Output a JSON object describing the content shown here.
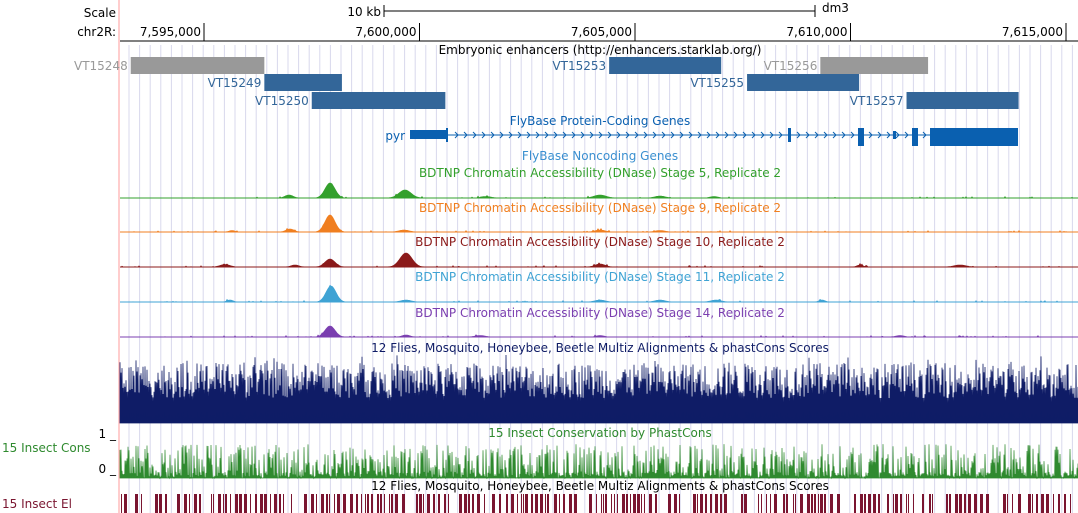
{
  "header": {
    "scale_label": "Scale",
    "chrom_label": "chr2R:",
    "scale_bar_label": "10 kb",
    "assembly": "dm3",
    "ruler_ticks": [
      {
        "pos": 7595000,
        "label": "7,595,000"
      },
      {
        "pos": 7600000,
        "label": "7,600,000"
      },
      {
        "pos": 7605000,
        "label": "7,605,000"
      },
      {
        "pos": 7610000,
        "label": "7,610,000"
      },
      {
        "pos": 7615000,
        "label": "7,615,000"
      }
    ]
  },
  "colors": {
    "enhancer": "#336699",
    "enhancer_gray": "#999999",
    "gene": "#0a60b0",
    "noncoding": "#3a8fd0",
    "stage5": "#33a02c",
    "stage9": "#f07f20",
    "stage10": "#8b1a1a",
    "stage11": "#3fa3d4",
    "stage14": "#7b3fb0",
    "multiz": "#0f1c66",
    "cons": "#2f8a2f",
    "elements": "#7a1530",
    "gridline": "#d8d8ec",
    "guide_red": "#ff9090"
  },
  "tracks": {
    "enhancers": {
      "title": "Embryonic enhancers (http://enhancers.starklab.org/)",
      "items": [
        {
          "name": "VT15248",
          "start": 7593300,
          "end": 7596400,
          "row": 0,
          "gray": true
        },
        {
          "name": "VT15249",
          "start": 7596400,
          "end": 7598200,
          "row": 1,
          "gray": false
        },
        {
          "name": "VT15250",
          "start": 7597500,
          "end": 7600600,
          "row": 2,
          "gray": false
        },
        {
          "name": "VT15253",
          "start": 7604400,
          "end": 7607000,
          "row": 0,
          "gray": false
        },
        {
          "name": "VT15255",
          "start": 7607600,
          "end": 7610200,
          "row": 1,
          "gray": false
        },
        {
          "name": "VT15256",
          "start": 7609300,
          "end": 7611800,
          "row": 0,
          "gray": true
        },
        {
          "name": "VT15257",
          "start": 7611300,
          "end": 7613900,
          "row": 2,
          "gray": false
        }
      ]
    },
    "genes": {
      "title": "FlyBase Protein-Coding Genes",
      "gene_name": "pyr"
    },
    "noncoding": {
      "title": "FlyBase Noncoding Genes"
    },
    "dnase": [
      {
        "title": "BDTNP Chromatin Accessibility (DNase) Stage 5, Replicate 2"
      },
      {
        "title": "BDTNP Chromatin Accessibility (DNase) Stage 9, Replicate 2"
      },
      {
        "title": "BDTNP Chromatin Accessibility (DNase) Stage 10, Replicate 2"
      },
      {
        "title": "BDTNP Chromatin Accessibility (DNase) Stage 11, Replicate 2"
      },
      {
        "title": "BDTNP Chromatin Accessibility (DNase) Stage 14, Replicate 2"
      }
    ],
    "multiz": {
      "title": "12 Flies, Mosquito, Honeybee, Beetle Multiz Alignments & phastCons Scores"
    },
    "cons": {
      "title": "15 Insect Conservation by PhastCons",
      "side_label": "15 Insect Cons",
      "scale_max": "1 _",
      "scale_min": "0 _"
    },
    "elements": {
      "title": "12 Flies, Mosquito, Honeybee, Beetle Multiz Alignments & phastCons Scores",
      "side_label": "15 Insect El"
    }
  }
}
